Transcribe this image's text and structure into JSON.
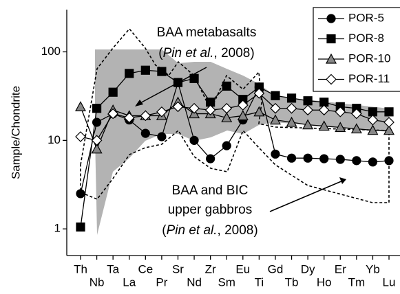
{
  "chart_data": {
    "type": "line",
    "y_label": "Sample/Chondrite",
    "log_scale": true,
    "ylim": [
      0.5,
      300
    ],
    "yticks": [
      1,
      10,
      100
    ],
    "legend": "upper right",
    "categories": [
      "Th",
      "Nb",
      "Ta",
      "La",
      "Ce",
      "Pr",
      "Sr",
      "Nd",
      "Zr",
      "Sm",
      "Eu",
      "Ti",
      "Gd",
      "Tb",
      "Dy",
      "Ho",
      "Er",
      "Tm",
      "Yb",
      "Lu"
    ],
    "series": [
      {
        "name": "POR-5",
        "color": "#000000",
        "marker": "circle",
        "values": [
          2.5,
          16,
          20,
          17,
          12,
          11,
          45,
          10,
          6.2,
          8.7,
          17,
          40,
          7,
          6.3,
          6.3,
          6.2,
          6.1,
          5.9,
          5.7,
          5.9
        ]
      },
      {
        "name": "POR-8",
        "color": "#000000",
        "marker": "square",
        "values": [
          1.05,
          23,
          35,
          57,
          62,
          60,
          45,
          50,
          27,
          41,
          29,
          40,
          32,
          30,
          28,
          27,
          24,
          23,
          21,
          21
        ]
      },
      {
        "name": "POR-10",
        "color": "#888888",
        "marker": "triangle",
        "values": [
          24,
          8,
          22,
          19,
          19,
          19,
          27,
          20,
          20,
          18,
          19,
          21,
          17,
          16,
          15,
          14.5,
          14,
          13.5,
          13,
          13
        ]
      },
      {
        "name": "POR-11",
        "color": "#ffffff",
        "marker": "diamond",
        "values": [
          11,
          10,
          20,
          18,
          19,
          21,
          24,
          23,
          22,
          23,
          25,
          34,
          23,
          23,
          22,
          22,
          21,
          20,
          17,
          16
        ]
      }
    ],
    "annotations": [
      {
        "lines": [
          "BAA metabasalts"
        ],
        "ref": [
          "(",
          "Pin et al.",
          ", 2008)"
        ]
      },
      {
        "lines": [
          "BAA and BIC",
          "upper gabbros"
        ],
        "ref": [
          "(",
          "Pin et al.",
          ", 2008)"
        ]
      }
    ]
  }
}
